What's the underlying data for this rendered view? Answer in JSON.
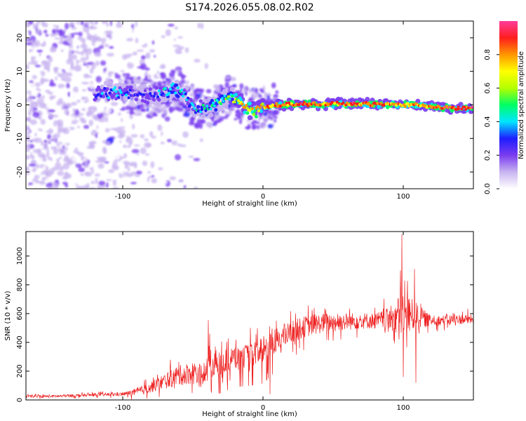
{
  "title": "S174.2026.055.08.02.R02",
  "chart_data": [
    {
      "type": "heatmap",
      "title": "",
      "xlabel": "Height of straight line (km)",
      "ylabel": "Frequency (Hz)",
      "xlim": [
        -169,
        150
      ],
      "ylim": [
        -25,
        25
      ],
      "xticks": [
        -100,
        0,
        100
      ],
      "xtick_labels": [
        "-100",
        "0",
        "100"
      ],
      "yticks": [
        -20,
        -10,
        0,
        10,
        20
      ],
      "ytick_labels": [
        "-20",
        "-10",
        "0",
        "10",
        "20"
      ],
      "ridge": {
        "x": [
          -115,
          -100,
          -90,
          -80,
          -70,
          -62,
          -55,
          -48,
          -40,
          -32,
          -25,
          -18,
          -12,
          -6,
          0,
          10,
          20,
          30,
          40,
          50,
          60,
          70,
          80,
          90,
          100,
          110,
          120,
          130,
          140,
          150
        ],
        "frequency": [
          3.5,
          3.8,
          3.0,
          2.5,
          3.5,
          5.0,
          2.5,
          -1.5,
          -0.5,
          0.5,
          2.5,
          1.5,
          -1.0,
          -1.5,
          -0.8,
          0.0,
          0.2,
          0.3,
          0.1,
          0.3,
          0.3,
          0.3,
          0.2,
          0.2,
          0.0,
          0.0,
          -0.5,
          -0.8,
          -1.0,
          -1.0
        ],
        "amplitude": [
          0.35,
          0.4,
          0.3,
          0.3,
          0.45,
          0.5,
          0.4,
          0.45,
          0.5,
          0.55,
          0.6,
          0.75,
          0.85,
          0.8,
          0.8,
          0.9,
          0.9,
          0.95,
          0.9,
          0.9,
          0.92,
          0.92,
          0.9,
          0.88,
          0.85,
          0.85,
          0.9,
          0.92,
          0.95,
          0.95
        ]
      },
      "colorbar": {
        "label": "Normalized spectral amplitude",
        "range": [
          0.0,
          1.0
        ],
        "ticks": [
          0.0,
          0.2,
          0.4,
          0.6,
          0.8
        ],
        "tick_labels": [
          "0.0",
          "0.2",
          "0.4",
          "0.6",
          "0.8"
        ],
        "colors": [
          "#ffffff",
          "#c8b4f0",
          "#7a3cf0",
          "#1e1eff",
          "#00e6ff",
          "#00ff64",
          "#b4ff00",
          "#ffff00",
          "#ff9600",
          "#ff1e1e",
          "#ff3c9a"
        ]
      }
    },
    {
      "type": "line",
      "title": "",
      "xlabel": "Height of straight line (km)",
      "ylabel": "SNR (10 * v/v)",
      "xlim": [
        -169,
        150
      ],
      "ylim": [
        0,
        1170
      ],
      "xticks": [
        -100,
        0,
        100
      ],
      "xtick_labels": [
        "-100",
        "0",
        "100"
      ],
      "yticks": [
        0,
        200,
        400,
        600,
        800,
        1000
      ],
      "ytick_labels": [
        "0",
        "200",
        "400",
        "600",
        "800",
        "1000"
      ],
      "series": [
        {
          "name": "SNR",
          "color": "#ee2222",
          "trend_x": [
            -169,
            -150,
            -120,
            -100,
            -90,
            -80,
            -70,
            -60,
            -50,
            -45,
            -40,
            -35,
            -30,
            -20,
            -10,
            0,
            10,
            20,
            30,
            40,
            50,
            60,
            70,
            80,
            90,
            100,
            110,
            120,
            130,
            140,
            150
          ],
          "trend_y": [
            25,
            25,
            35,
            40,
            55,
            90,
            130,
            170,
            190,
            170,
            200,
            260,
            260,
            290,
            310,
            340,
            420,
            470,
            510,
            530,
            540,
            545,
            550,
            550,
            560,
            600,
            580,
            550,
            555,
            560,
            560
          ],
          "noise_x": [
            -169,
            -100,
            -80,
            -60,
            -40,
            -20,
            0,
            20,
            40,
            60,
            80,
            90,
            100,
            110,
            120,
            150
          ],
          "noise_y": [
            8,
            12,
            40,
            70,
            90,
            80,
            90,
            80,
            70,
            60,
            55,
            80,
            160,
            90,
            35,
            35
          ],
          "spikes": [
            {
              "x": -39,
              "y": 555
            },
            {
              "x": -38,
              "y": 460
            },
            {
              "x": -37,
              "y": 70
            },
            {
              "x": 5,
              "y": 40
            },
            {
              "x": 97,
              "y": 420
            },
            {
              "x": 98,
              "y": 900
            },
            {
              "x": 99,
              "y": 1150
            },
            {
              "x": 100,
              "y": 160
            },
            {
              "x": 101,
              "y": 830
            },
            {
              "x": 108,
              "y": 910
            },
            {
              "x": 109,
              "y": 120
            }
          ]
        }
      ]
    }
  ]
}
